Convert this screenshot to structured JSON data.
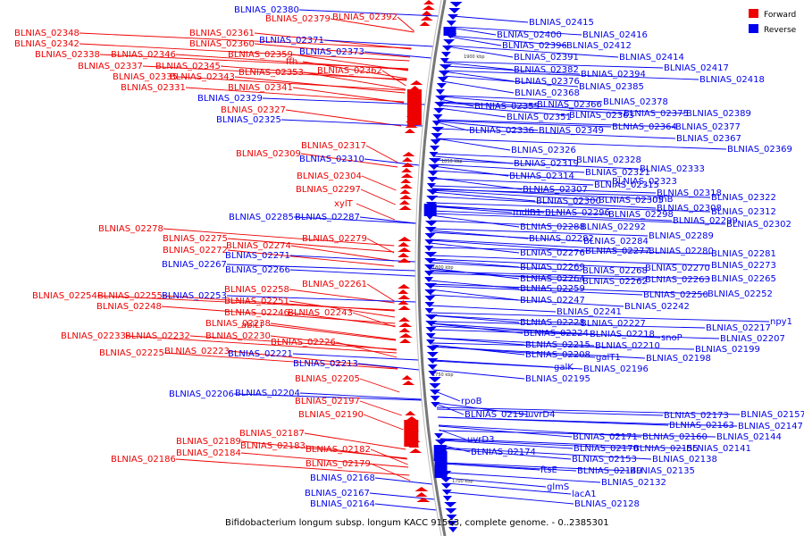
{
  "caption": "Bifidobacterium longum subsp. longum KACC 91563, complete genome. - 0..2385301",
  "legend": {
    "forward_label": "Forward",
    "reverse_label": "Reverse",
    "forward_color": "#ee0000",
    "reverse_color": "#0000ee"
  },
  "ticks": [
    "1900 kbp",
    "1850 kbp",
    "1800 kbp",
    "1750 kbp",
    "1700 kbp"
  ],
  "forward_labels": [
    "BLNIAS_02379",
    "BLNIAS_02392",
    "BLNIAS_02348",
    "BLNIAS_02361",
    "BLNIAS_02342",
    "BLNIAS_02360",
    "BLNIAS_02338",
    "BLNIAS_02346",
    "BLNIAS_02359",
    "ffh",
    "BLNIAS_02337",
    "BLNIAS_02345",
    "BLNIAS_02362",
    "BLNIAS_02343",
    "BLNIAS_02353",
    "BLNIAS_02335",
    "BLNIAS_02331",
    "BLNIAS_02341",
    "BLNIAS_02327",
    "BLNIAS_02317",
    "BLNIAS_02309",
    "BLNIAS_02304",
    "BLNIAS_02297",
    "xylT",
    "BLNIAS_02278",
    "BLNIAS_02275",
    "BLNIAS_02279",
    "BLNIAS_02274",
    "BLNIAS_02272",
    "BLNIAS_02261",
    "BLNIAS_02258",
    "BLNIAS_02254",
    "BLNIAS_02255",
    "BLNIAS_02251",
    "BLNIAS_02248",
    "BLNIAS_02246",
    "BLNIAS_02243",
    "abiLI",
    "BLNIAS_02238",
    "BLNIAS_02233",
    "BLNIAS_02232",
    "BLNIAS_02230",
    "BLNIAS_02226",
    "BLNIAS_02225",
    "BLNIAS_02223",
    "BLNIAS_02205",
    "BLNIAS_02197",
    "BLNIAS_02190",
    "BLNIAS_02187",
    "BLNIAS_02189",
    "BLNIAS_02183",
    "BLNIAS_02184",
    "BLNIAS_02182",
    "BLNIAS_02186",
    "BLNIAS_02179"
  ],
  "reverse_left_labels": [
    "BLNIAS_02380",
    "BLNIAS_02371",
    "BLNIAS_02373",
    "BLNIAS_02329",
    "BLNIAS_02325",
    "BLNIAS_02310",
    "BLNIAS_02285",
    "BLNIAS_02287",
    "BLNIAS_02271",
    "BLNIAS_02267",
    "BLNIAS_02266",
    "BLNIAS_02253",
    "BLNIAS_02221",
    "BLNIAS_02213",
    "BLNIAS_02206",
    "BLNIAS_02204",
    "BLNIAS_02168",
    "BLNIAS_02167",
    "BLNIAS_02164"
  ],
  "reverse_right_labels": [
    "BLNIAS_02415",
    "BLNIAS_02400",
    "BLNIAS_02416",
    "BLNIAS_02396",
    "BLNIAS_02412",
    "BLNIAS_02391",
    "BLNIAS_02414",
    "BLNIAS_02417",
    "BLNIAS_02382",
    "BLNIAS_02394",
    "BLNIAS_02418",
    "BLNIAS_02376",
    "BLNIAS_02385",
    "BLNIAS_02368",
    "BLNIAS_02378",
    "BLNIAS_02355",
    "BLNIAS_02366",
    "BLNIAS_02351",
    "BLNIAS_02363",
    "BLNIAS_02375",
    "BLNIAS_02389",
    "BLNIAS_02364",
    "BLNIAS_02377",
    "BLNIAS_02336",
    "BLNIAS_02349",
    "BLNIAS_02367",
    "BLNIAS_02369",
    "BLNIAS_02326",
    "BLNIAS_02328",
    "BLNIAS_02319",
    "BLNIAS_02321",
    "BLNIAS_02333",
    "BLNIAS_02314",
    "BLNIAS_02323",
    "BLNIAS_02307",
    "BLNIAS_02315",
    "BLNIAS_02318",
    "BLNIAS_02322",
    "BLNIAS_02300",
    "BLNIAS_02305",
    "rnhB",
    "BLNIAS_02308",
    "mdlB1",
    "BLNIAS_02296",
    "BLNIAS_02298",
    "BLNIAS_02312",
    "BLNIAS_02299",
    "BLNIAS_02302",
    "BLNIAS_02288",
    "BLNIAS_02292",
    "BLNIAS_02289",
    "BLNIAS_02282",
    "BLNIAS_02284",
    "BLNIAS_02276",
    "BLNIAS_02277",
    "BLNIAS_02280",
    "BLNIAS_02281",
    "BLNIAS_02269",
    "BLNIAS_02268",
    "BLNIAS_02270",
    "BLNIAS_02273",
    "BLNIAS_02264",
    "BLNIAS_02262",
    "BLNIAS_02263",
    "BLNIAS_02265",
    "BLNIAS_02259",
    "BLNIAS_02250",
    "BLNIAS_02252",
    "BLNIAS_02247",
    "BLNIAS_02242",
    "BLNIAS_02241",
    "BLNIAS_02228",
    "BLNIAS_02227",
    "npy1",
    "BLNIAS_02224",
    "BLNIAS_02218",
    "snoP",
    "BLNIAS_02217",
    "BLNIAS_02215",
    "BLNIAS_02210",
    "BLNIAS_02207",
    "BLNIAS_02208",
    "galT1",
    "BLNIAS_02198",
    "BLNIAS_02199",
    "galK",
    "BLNIAS_02196",
    "BLNIAS_02195",
    "rpoB",
    "BLNIAS_02191",
    "uvrD4",
    "BLNIAS_02173",
    "BLNIAS_02157",
    "BLNIAS_02163",
    "BLNIAS_02147",
    "uvrD3",
    "BLNIAS_02171",
    "BLNIAS_02160",
    "BLNIAS_02144",
    "BLNIAS_02174",
    "BLNIAS_02170",
    "BLNIAS_02155",
    "BLNIAS_02141",
    "BLNIAS_02153",
    "BLNIAS_02138",
    "ftsE",
    "BLNIAS_02149",
    "BLNIAS_02135",
    "glmS",
    "BLNIAS_02132",
    "lacA1",
    "BLNIAS_02128"
  ]
}
